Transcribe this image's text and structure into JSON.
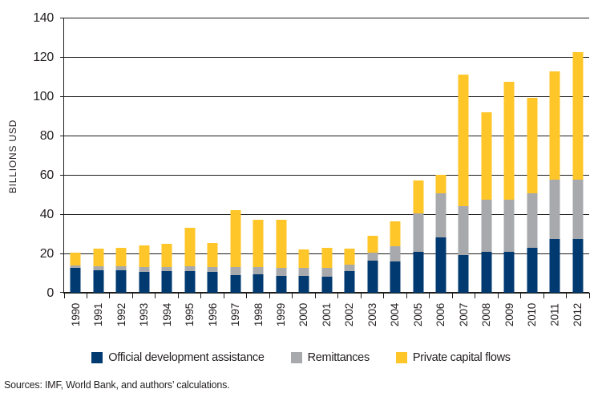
{
  "figure": {
    "source": "Sources: IMF, World Bank, and authors’ calculations."
  },
  "chart_data": {
    "type": "bar",
    "stacked": true,
    "title": "",
    "xlabel": "",
    "ylabel": "BILLIONS USD",
    "ylim": [
      0,
      140
    ],
    "yticks": [
      0,
      20,
      40,
      60,
      80,
      100,
      120,
      140
    ],
    "grid": true,
    "legend_position": "bottom",
    "categories": [
      "1990",
      "1991",
      "1992",
      "1993",
      "1994",
      "1995",
      "1996",
      "1997",
      "1998",
      "1999",
      "2000",
      "2001",
      "2002",
      "2003",
      "2004",
      "2005",
      "2006",
      "2007",
      "2008",
      "2009",
      "2010",
      "2011",
      "2012"
    ],
    "series": [
      {
        "name": "Official development assistance",
        "color": "#003a70",
        "values": [
          12.5,
          11.5,
          11.5,
          10.5,
          11,
          11,
          10.5,
          9,
          9.5,
          8.5,
          8.5,
          8,
          11,
          16.5,
          16,
          21,
          28,
          19,
          21,
          21,
          23,
          27.5,
          27.5
        ]
      },
      {
        "name": "Remittances",
        "color": "#a7a9ac",
        "values": [
          1.5,
          2,
          2,
          2.5,
          2,
          2.5,
          2.5,
          4,
          3.5,
          4,
          4,
          4.5,
          3.5,
          4,
          7.5,
          19.5,
          22.5,
          25,
          26.5,
          26.5,
          27.5,
          30,
          30
        ]
      },
      {
        "name": "Private capital flows",
        "color": "#ffc629",
        "values": [
          6.5,
          9,
          9.5,
          11,
          12,
          19.5,
          12.5,
          29,
          24,
          24.5,
          9.5,
          10.5,
          8,
          8.5,
          13,
          16.5,
          9.5,
          67,
          44.5,
          60,
          48.5,
          55,
          65
        ]
      }
    ],
    "colors": {
      "axis": "#1d1d1b",
      "text": "#231f20",
      "background": "#ffffff"
    }
  }
}
